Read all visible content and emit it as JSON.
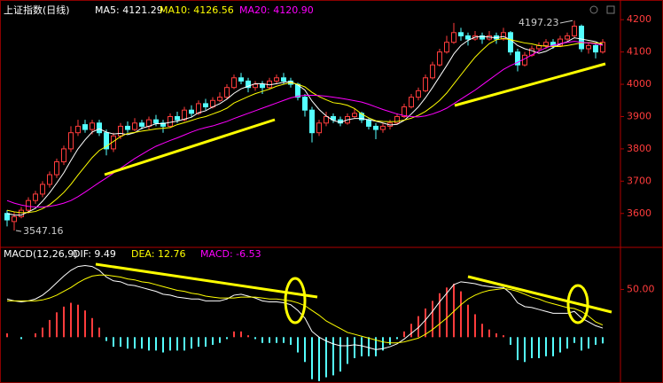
{
  "chart_data": [
    {
      "type": "candlestick",
      "title": "上证指数(日线)",
      "up_color": "#ff3c3c",
      "down_color": "#54ffff",
      "ylim": [
        3495,
        4250
      ],
      "yticks": [
        3600,
        3700,
        3800,
        3900,
        4000,
        4100,
        4200
      ],
      "candles": [
        [
          3600,
          3610,
          3560,
          3580
        ],
        [
          3575,
          3605,
          3547.16,
          3590
        ],
        [
          3590,
          3620,
          3585,
          3610
        ],
        [
          3610,
          3650,
          3600,
          3640
        ],
        [
          3640,
          3670,
          3630,
          3660
        ],
        [
          3660,
          3700,
          3650,
          3690
        ],
        [
          3690,
          3730,
          3680,
          3720
        ],
        [
          3720,
          3770,
          3710,
          3760
        ],
        [
          3760,
          3810,
          3750,
          3800
        ],
        [
          3800,
          3870,
          3790,
          3850
        ],
        [
          3850,
          3890,
          3840,
          3870
        ],
        [
          3875,
          3890,
          3850,
          3860
        ],
        [
          3860,
          3890,
          3845,
          3880
        ],
        [
          3880,
          3890,
          3840,
          3850
        ],
        [
          3850,
          3860,
          3780,
          3800
        ],
        [
          3800,
          3850,
          3790,
          3840
        ],
        [
          3840,
          3880,
          3830,
          3870
        ],
        [
          3870,
          3885,
          3850,
          3860
        ],
        [
          3860,
          3895,
          3855,
          3880
        ],
        [
          3880,
          3890,
          3860,
          3870
        ],
        [
          3870,
          3900,
          3860,
          3890
        ],
        [
          3890,
          3905,
          3870,
          3880
        ],
        [
          3880,
          3890,
          3850,
          3870
        ],
        [
          3870,
          3910,
          3865,
          3900
        ],
        [
          3900,
          3915,
          3880,
          3890
        ],
        [
          3890,
          3930,
          3885,
          3920
        ],
        [
          3920,
          3935,
          3900,
          3910
        ],
        [
          3910,
          3950,
          3905,
          3940
        ],
        [
          3940,
          3955,
          3920,
          3930
        ],
        [
          3930,
          3960,
          3925,
          3950
        ],
        [
          3950,
          3975,
          3945,
          3960
        ],
        [
          3960,
          4000,
          3955,
          3990
        ],
        [
          3990,
          4030,
          3985,
          4020
        ],
        [
          4020,
          4035,
          4000,
          4010
        ],
        [
          4010,
          4020,
          3975,
          3990
        ],
        [
          3990,
          4010,
          3980,
          4000
        ],
        [
          4000,
          4010,
          3970,
          3990
        ],
        [
          3990,
          4020,
          3985,
          4010
        ],
        [
          4010,
          4030,
          4000,
          4020
        ],
        [
          4020,
          4035,
          4000,
          4010
        ],
        [
          4010,
          4020,
          3990,
          4000
        ],
        [
          4000,
          4005,
          3950,
          3960
        ],
        [
          3960,
          3970,
          3900,
          3920
        ],
        [
          3920,
          3930,
          3820,
          3850
        ],
        [
          3850,
          3890,
          3840,
          3880
        ],
        [
          3880,
          3915,
          3870,
          3900
        ],
        [
          3900,
          3910,
          3880,
          3890
        ],
        [
          3890,
          3900,
          3870,
          3880
        ],
        [
          3880,
          3910,
          3875,
          3900
        ],
        [
          3900,
          3925,
          3895,
          3910
        ],
        [
          3910,
          3915,
          3880,
          3890
        ],
        [
          3890,
          3895,
          3860,
          3870
        ],
        [
          3870,
          3880,
          3830,
          3860
        ],
        [
          3860,
          3880,
          3850,
          3870
        ],
        [
          3870,
          3890,
          3860,
          3880
        ],
        [
          3880,
          3910,
          3875,
          3900
        ],
        [
          3900,
          3940,
          3895,
          3930
        ],
        [
          3930,
          3970,
          3925,
          3960
        ],
        [
          3960,
          3990,
          3950,
          3980
        ],
        [
          3980,
          4030,
          3975,
          4020
        ],
        [
          4020,
          4070,
          4015,
          4060
        ],
        [
          4060,
          4110,
          4055,
          4100
        ],
        [
          4100,
          4150,
          4095,
          4130
        ],
        [
          4130,
          4190,
          4125,
          4160
        ],
        [
          4160,
          4175,
          4135,
          4150
        ],
        [
          4150,
          4160,
          4120,
          4140
        ],
        [
          4140,
          4165,
          4135,
          4150
        ],
        [
          4150,
          4160,
          4125,
          4140
        ],
        [
          4140,
          4165,
          4135,
          4150
        ],
        [
          4150,
          4160,
          4125,
          4140
        ],
        [
          4140,
          4175,
          4135,
          4160
        ],
        [
          4160,
          4165,
          4090,
          4100
        ],
        [
          4100,
          4110,
          4040,
          4060
        ],
        [
          4060,
          4100,
          4055,
          4090
        ],
        [
          4090,
          4120,
          4085,
          4110
        ],
        [
          4110,
          4130,
          4100,
          4120
        ],
        [
          4120,
          4140,
          4110,
          4130
        ],
        [
          4130,
          4140,
          4110,
          4120
        ],
        [
          4120,
          4150,
          4115,
          4140
        ],
        [
          4140,
          4160,
          4135,
          4150
        ],
        [
          4150,
          4197.23,
          4145,
          4180
        ],
        [
          4180,
          4185,
          4100,
          4110
        ],
        [
          4110,
          4130,
          4095,
          4120
        ],
        [
          4120,
          4125,
          4080,
          4100
        ],
        [
          4100,
          4140,
          4095,
          4130
        ]
      ],
      "series": [
        {
          "name": "MA5: 4121.29",
          "color": "#ffffff",
          "values": [
            3600,
            3595,
            3595,
            3605,
            3616,
            3638,
            3664,
            3694,
            3726,
            3764,
            3800,
            3828,
            3852,
            3862,
            3852,
            3846,
            3848,
            3844,
            3850,
            3864,
            3870,
            3878,
            3878,
            3882,
            3886,
            3892,
            3898,
            3912,
            3918,
            3930,
            3940,
            3954,
            3972,
            3986,
            3994,
            4002,
            4002,
            3998,
            4002,
            4006,
            4008,
            3998,
            3982,
            3948,
            3922,
            3902,
            3888,
            3882,
            3890,
            3894,
            3894,
            3890,
            3886,
            3880,
            3874,
            3876,
            3888,
            3908,
            3930,
            3958,
            3990,
            4024,
            4058,
            4094,
            4120,
            4136,
            4146,
            4148,
            4146,
            4144,
            4148,
            4138,
            4120,
            4110,
            4104,
            4096,
            4102,
            4114,
            4124,
            4132,
            4144,
            4140,
            4136,
            4132,
            4121.29
          ]
        },
        {
          "name": "MA10: 4126.56",
          "color": "#ffff00",
          "values": [
            3610,
            3605,
            3602,
            3603,
            3606,
            3615,
            3627,
            3645,
            3665,
            3690,
            3719,
            3746,
            3773,
            3795,
            3808,
            3823,
            3838,
            3848,
            3851,
            3855,
            3858,
            3862,
            3864,
            3866,
            3875,
            3881,
            3888,
            3895,
            3900,
            3908,
            3916,
            3926,
            3942,
            3952,
            3962,
            3971,
            3978,
            3985,
            3994,
            4000,
            4005,
            4000,
            3992,
            3975,
            3962,
            3952,
            3943,
            3940,
            3935,
            3925,
            3908,
            3896,
            3887,
            3885,
            3884,
            3885,
            3889,
            3895,
            3904,
            3916,
            3932,
            3950,
            3973,
            4001,
            4029,
            4057,
            4084,
            4106,
            4126,
            4138,
            4142,
            4138,
            4133,
            4128,
            4125,
            4120,
            4118,
            4117,
            4117,
            4120,
            4124,
            4128,
            4129,
            4128,
            4126.56
          ]
        },
        {
          "name": "MA20: 4120.90",
          "color": "#ff00ff",
          "values": [
            3640,
            3632,
            3626,
            3622,
            3620,
            3620,
            3622,
            3626,
            3632,
            3640,
            3652,
            3666,
            3681,
            3696,
            3710,
            3725,
            3740,
            3755,
            3770,
            3783,
            3796,
            3808,
            3817,
            3826,
            3834,
            3843,
            3852,
            3860,
            3866,
            3871,
            3878,
            3885,
            3894,
            3902,
            3910,
            3918,
            3926,
            3934,
            3942,
            3950,
            3958,
            3963,
            3966,
            3966,
            3965,
            3963,
            3960,
            3957,
            3953,
            3949,
            3945,
            3938,
            3930,
            3922,
            3915,
            3908,
            3903,
            3900,
            3899,
            3902,
            3908,
            3916,
            3926,
            3940,
            3954,
            3968,
            3982,
            3998,
            4014,
            4030,
            4046,
            4058,
            4068,
            4079,
            4091,
            4103,
            4113,
            4121,
            4126,
            4130,
            4133,
            4130,
            4128,
            4125,
            4120.9
          ]
        }
      ]
    },
    {
      "type": "macd",
      "title": "MACD(12,26,9)",
      "ylim": [
        -48,
        82
      ],
      "yticks": [
        {
          "value": 50,
          "label": "50.00"
        }
      ],
      "series": [
        {
          "name": "DIF: 9.49",
          "color": "#ffffff",
          "values": [
            40,
            38,
            37,
            38,
            40,
            44,
            50,
            57,
            64,
            70,
            74,
            75,
            74,
            70,
            63,
            59,
            58,
            55,
            54,
            52,
            50,
            48,
            45,
            44,
            42,
            41,
            40,
            40,
            38,
            38,
            38,
            40,
            44,
            45,
            43,
            41,
            38,
            37,
            37,
            36,
            34,
            28,
            20,
            6,
            0,
            -4,
            -7,
            -9,
            -9,
            -8,
            -9,
            -11,
            -13,
            -12,
            -10,
            -7,
            -2,
            4,
            10,
            18,
            27,
            37,
            46,
            55,
            58,
            57,
            56,
            54,
            53,
            52,
            52,
            46,
            36,
            32,
            31,
            29,
            27,
            25,
            25,
            25,
            27,
            20,
            16,
            12,
            9.49
          ]
        },
        {
          "name": "DEA: 12.76",
          "color": "#ffff00",
          "values": [
            38,
            38,
            38,
            38,
            38,
            39,
            41,
            44,
            48,
            52,
            57,
            61,
            64,
            65,
            65,
            64,
            63,
            61,
            60,
            58,
            57,
            55,
            53,
            51,
            49,
            48,
            46,
            45,
            43,
            42,
            41,
            41,
            41,
            42,
            42,
            42,
            41,
            40,
            40,
            39,
            38,
            36,
            33,
            28,
            23,
            17,
            13,
            9,
            5,
            3,
            1,
            -1,
            -3,
            -5,
            -6,
            -6,
            -5,
            -3,
            -1,
            3,
            8,
            14,
            20,
            27,
            34,
            40,
            44,
            47,
            49,
            50,
            51,
            50,
            48,
            45,
            42,
            40,
            37,
            35,
            33,
            31,
            30,
            27,
            22,
            16,
            12.76
          ]
        }
      ],
      "histogram": {
        "name": "MACD: -6.53",
        "color": "#ff00ff",
        "up_color": "#ff3c3c",
        "down_color": "#54ffff",
        "values": [
          4,
          0,
          -2,
          0,
          4,
          10,
          18,
          26,
          32,
          36,
          34,
          28,
          20,
          10,
          -4,
          -10,
          -10,
          -12,
          -12,
          -12,
          -14,
          -14,
          -16,
          -14,
          -14,
          -14,
          -12,
          -10,
          -10,
          -8,
          -6,
          -2,
          6,
          6,
          2,
          -2,
          -6,
          -6,
          -6,
          -6,
          -8,
          -16,
          -26,
          -44,
          -46,
          -42,
          -40,
          -36,
          -28,
          -22,
          -20,
          -20,
          -20,
          -14,
          -8,
          -2,
          6,
          14,
          22,
          30,
          38,
          46,
          52,
          56,
          48,
          34,
          24,
          14,
          8,
          4,
          2,
          -8,
          -24,
          -26,
          -22,
          -22,
          -20,
          -20,
          -16,
          -12,
          -6,
          -14,
          -12,
          -8,
          -6.53
        ]
      }
    }
  ]
}
